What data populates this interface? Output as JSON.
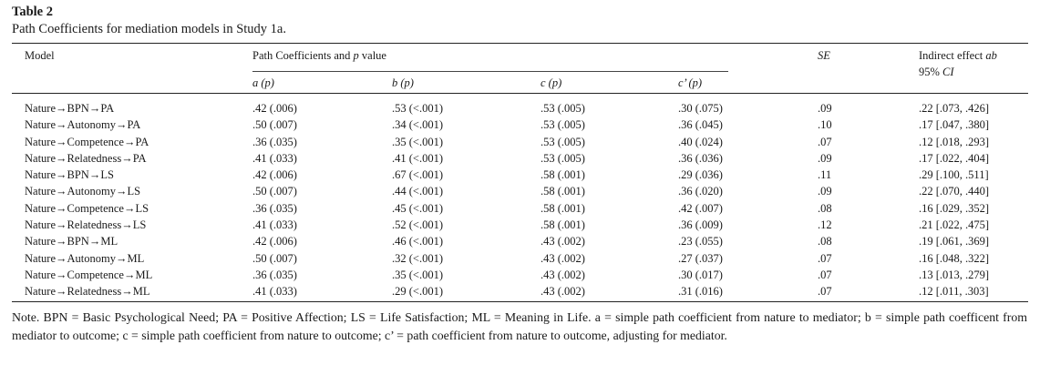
{
  "table": {
    "label": "Table 2",
    "caption": "Path Coefficients for mediation models in Study 1a."
  },
  "headers": {
    "model": "Model",
    "group_prefix": "Path Coefficients and ",
    "group_p": "p",
    "group_suffix": " value",
    "a": "a (",
    "b": "b (",
    "c": "c (",
    "cprime": "c’ (",
    "p_italic": "p",
    "close": ")",
    "se": "SE",
    "indirect_prefix": "Indirect effect ",
    "indirect_ab": "ab",
    "ci_prefix": "95% ",
    "ci": "CI"
  },
  "rows": [
    {
      "model": "Nature→BPN→PA",
      "a": ".42 (.006)",
      "b": ".53 (<.001)",
      "c": ".53 (.005)",
      "cp": ".30 (.075)",
      "se": ".09",
      "ie": ".22 [.073, .426]"
    },
    {
      "model": "Nature→Autonomy→PA",
      "a": ".50 (.007)",
      "b": ".34 (<.001)",
      "c": ".53 (.005)",
      "cp": ".36 (.045)",
      "se": ".10",
      "ie": ".17 [.047, .380]"
    },
    {
      "model": "Nature→Competence→PA",
      "a": ".36 (.035)",
      "b": ".35 (<.001)",
      "c": ".53 (.005)",
      "cp": ".40 (.024)",
      "se": ".07",
      "ie": ".12 [.018, .293]"
    },
    {
      "model": "Nature→Relatedness→PA",
      "a": ".41 (.033)",
      "b": ".41 (<.001)",
      "c": ".53 (.005)",
      "cp": ".36 (.036)",
      "se": ".09",
      "ie": ".17 [.022, .404]"
    },
    {
      "model": "Nature→BPN→LS",
      "a": ".42 (.006)",
      "b": ".67 (<.001)",
      "c": ".58 (.001)",
      "cp": ".29 (.036)",
      "se": ".11",
      "ie": ".29 [.100, .511]"
    },
    {
      "model": "Nature→Autonomy→LS",
      "a": ".50 (.007)",
      "b": ".44 (<.001)",
      "c": ".58 (.001)",
      "cp": ".36 (.020)",
      "se": ".09",
      "ie": ".22 [.070, .440]"
    },
    {
      "model": "Nature→Competence→LS",
      "a": ".36 (.035)",
      "b": ".45 (<.001)",
      "c": ".58 (.001)",
      "cp": ".42 (.007)",
      "se": ".08",
      "ie": ".16 [.029, .352]"
    },
    {
      "model": "Nature→Relatedness→LS",
      "a": ".41 (.033)",
      "b": ".52 (<.001)",
      "c": ".58 (.001)",
      "cp": ".36 (.009)",
      "se": ".12",
      "ie": ".21 [.022, .475]"
    },
    {
      "model": "Nature→BPN→ML",
      "a": ".42 (.006)",
      "b": ".46 (<.001)",
      "c": ".43 (.002)",
      "cp": ".23 (.055)",
      "se": ".08",
      "ie": ".19 [.061, .369]"
    },
    {
      "model": "Nature→Autonomy→ML",
      "a": ".50 (.007)",
      "b": ".32 (<.001)",
      "c": ".43 (.002)",
      "cp": ".27 (.037)",
      "se": ".07",
      "ie": ".16 [.048, .322]"
    },
    {
      "model": "Nature→Competence→ML",
      "a": ".36 (.035)",
      "b": ".35 (<.001)",
      "c": ".43 (.002)",
      "cp": ".30 (.017)",
      "se": ".07",
      "ie": ".13 [.013, .279]"
    },
    {
      "model": "Nature→Relatedness→ML",
      "a": ".41 (.033)",
      "b": ".29 (<.001)",
      "c": ".43 (.002)",
      "cp": ".31 (.016)",
      "se": ".07",
      "ie": ".12 [.011, .303]"
    }
  ],
  "note": "Note. BPN = Basic Psychological Need; PA = Positive Affection; LS = Life Satisfaction; ML = Meaning in Life. a = simple path coefficient from nature to mediator; b = simple path coefficent from mediator to outcome; c = simple path coefficient from nature to outcome; c’ = path coefficient from nature to outcome, adjusting for mediator."
}
